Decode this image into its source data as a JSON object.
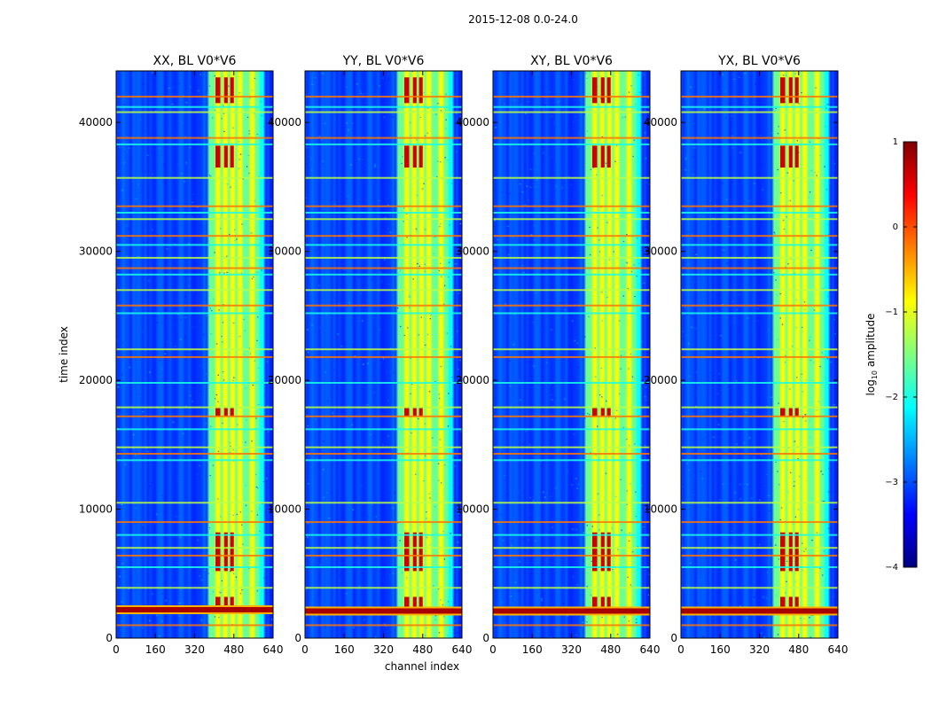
{
  "figure": {
    "suptitle": "2015-12-08 0.0-24.0",
    "xlabel": "channel index",
    "ylabel": "time index"
  },
  "colorbar": {
    "label_prefix": "log",
    "label_sub": "10",
    "label_suffix": " amplitude",
    "ticks": [
      1,
      0,
      -1,
      -2,
      -3,
      -4
    ],
    "tick_labels": [
      "1",
      "0",
      "−1",
      "−2",
      "−3",
      "−4"
    ],
    "range": [
      -4,
      1
    ],
    "colormap": "jet"
  },
  "chart_data": {
    "type": "heatmap",
    "x_ticks": [
      0,
      160,
      320,
      480,
      640
    ],
    "x_tick_labels": [
      "0",
      "160",
      "320",
      "480",
      "640"
    ],
    "y_ticks": [
      0,
      10000,
      20000,
      30000,
      40000
    ],
    "y_tick_labels": [
      "0",
      "10000",
      "20000",
      "30000",
      "40000"
    ],
    "xlim": [
      0,
      640
    ],
    "ylim": [
      0,
      44000
    ],
    "panels": [
      {
        "title": "XX, BL V0*V6",
        "wide_band_row": 2200
      },
      {
        "title": "YY, BL V0*V6",
        "wide_band_row": 2100
      },
      {
        "title": "XY, BL V0*V6",
        "wide_band_row": 2100
      },
      {
        "title": "YX, BL V0*V6",
        "wide_band_row": 2100
      }
    ],
    "bright_channels": [
      [
        405,
        425
      ],
      [
        440,
        455
      ],
      [
        465,
        480
      ],
      [
        500,
        510
      ],
      [
        545,
        560
      ]
    ],
    "flagged_rows": [
      1000,
      3900,
      5500,
      6400,
      7000,
      8000,
      9000,
      10500,
      13800,
      14300,
      14800,
      16200,
      17200,
      17900,
      19800,
      21800,
      22400,
      25200,
      25800,
      27000,
      28200,
      28700,
      29500,
      30500,
      31200,
      32500,
      33000,
      33500,
      35700,
      38300,
      38800,
      40800,
      41200,
      42000
    ],
    "value_range": [
      -4,
      1
    ]
  }
}
